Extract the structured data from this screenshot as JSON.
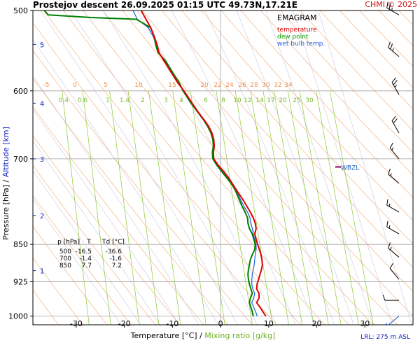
{
  "header": {
    "title": "Prostejov   descent   26.09.2025 01:15 UTC  49.73N,17.21E",
    "copyright": "CHMI © 2025"
  },
  "legend": {
    "name": "EMAGRAM",
    "items": [
      {
        "label": "temperature",
        "color": "#e00000"
      },
      {
        "label": "dew point",
        "color": "#00a000"
      },
      {
        "label": "wet bulb temp.",
        "color": "#2060e0"
      }
    ]
  },
  "table": {
    "headers": [
      "p [hPa]",
      "T",
      "Td [°C]"
    ],
    "rows": [
      [
        "500",
        "-16.5",
        "-36.6"
      ],
      [
        "700",
        "-1.4",
        "-1.6"
      ],
      [
        "850",
        "7.7",
        "7.2"
      ]
    ]
  },
  "annotations": {
    "wbzl": "WBZL",
    "wbzl_p": 713,
    "lrl": "LRL: 275 m ASL"
  },
  "colors": {
    "temperature": "#e00000",
    "dewpoint": "#008000",
    "wetbulb": "#2060e0",
    "dry_adiabat": "#f5b585",
    "moist_adiabat": "#c8c8dc",
    "mixing": "#8ec832",
    "isobar": "#a0a0a0",
    "frame": "#000000",
    "wind": "#000000",
    "wind_low": "#1050d0"
  },
  "chart_data": {
    "type": "line",
    "diagram": "emagram",
    "xlabel": "Temperature [°C]",
    "xlabel_sep": "/",
    "xlabel2": "Mixing ratio [g/kg]",
    "ylabel": "Pressure [hPa]",
    "ylabel_sep": "/",
    "ylabel2": "Altitude [km]",
    "x_range": [
      -39,
      40
    ],
    "p_range": [
      500,
      1020
    ],
    "y_scale": "log",
    "x_ticks": [
      -30,
      -20,
      -10,
      0,
      10,
      20,
      30
    ],
    "p_ticks": [
      500,
      600,
      700,
      850,
      925,
      1000
    ],
    "altitude_ticks": [
      {
        "km": 1,
        "p": 902
      },
      {
        "km": 2,
        "p": 796
      },
      {
        "km": 3,
        "p": 700
      },
      {
        "km": 4,
        "p": 617
      },
      {
        "km": 5,
        "p": 540
      }
    ],
    "dry_adiabat_labels": [
      -5,
      0,
      5,
      10,
      15,
      20,
      22,
      24,
      26,
      28,
      30,
      32,
      34
    ],
    "mixing_ratio_labels": [
      "0.4",
      "0.6",
      "1",
      "1.4",
      "2",
      "3",
      "4",
      "6",
      "8",
      "10",
      "12",
      "14",
      "17",
      "20",
      "25",
      "30"
    ],
    "mixing_ratio_values": [
      0.4,
      0.6,
      1,
      1.4,
      2,
      3,
      4,
      6,
      8,
      10,
      12,
      14,
      17,
      20,
      25,
      30
    ],
    "series": [
      {
        "name": "temperature",
        "points": [
          [
            -16.5,
            500
          ],
          [
            -15.5,
            510
          ],
          [
            -14.5,
            520
          ],
          [
            -13.8,
            530
          ],
          [
            -13.2,
            540
          ],
          [
            -12.8,
            550
          ],
          [
            -11.8,
            560
          ],
          [
            -10.8,
            570
          ],
          [
            -9.8,
            580
          ],
          [
            -8.8,
            590
          ],
          [
            -7.6,
            600
          ],
          [
            -6.6,
            610
          ],
          [
            -5.6,
            620
          ],
          [
            -4.6,
            630
          ],
          [
            -3.5,
            640
          ],
          [
            -2.5,
            650
          ],
          [
            -1.8,
            660
          ],
          [
            -1.4,
            670
          ],
          [
            -1.3,
            680
          ],
          [
            -1.5,
            690
          ],
          [
            -1.4,
            700
          ],
          [
            -0.5,
            710
          ],
          [
            0.6,
            720
          ],
          [
            1.6,
            730
          ],
          [
            2.4,
            740
          ],
          [
            3.2,
            750
          ],
          [
            4.0,
            760
          ],
          [
            4.8,
            770
          ],
          [
            5.5,
            780
          ],
          [
            6.2,
            790
          ],
          [
            6.8,
            800
          ],
          [
            7.2,
            810
          ],
          [
            7.4,
            820
          ],
          [
            7.1,
            830
          ],
          [
            7.4,
            840
          ],
          [
            7.7,
            850
          ],
          [
            8.1,
            860
          ],
          [
            8.4,
            870
          ],
          [
            8.6,
            880
          ],
          [
            8.7,
            890
          ],
          [
            8.5,
            900
          ],
          [
            8.2,
            910
          ],
          [
            7.9,
            920
          ],
          [
            7.6,
            930
          ],
          [
            7.5,
            940
          ],
          [
            8.0,
            950
          ],
          [
            8.0,
            960
          ],
          [
            7.5,
            970
          ],
          [
            8.2,
            980
          ],
          [
            8.8,
            990
          ],
          [
            9.4,
            1000
          ]
        ]
      },
      {
        "name": "dew point",
        "points": [
          [
            -36.6,
            500
          ],
          [
            -35.8,
            505
          ],
          [
            -27.0,
            508
          ],
          [
            -17.5,
            510
          ],
          [
            -14.5,
            520
          ],
          [
            -13.8,
            530
          ],
          [
            -13.5,
            540
          ],
          [
            -13.0,
            550
          ],
          [
            -11.5,
            560
          ],
          [
            -10.5,
            570
          ],
          [
            -9.5,
            580
          ],
          [
            -8.5,
            590
          ],
          [
            -7.8,
            600
          ],
          [
            -6.8,
            610
          ],
          [
            -5.8,
            620
          ],
          [
            -4.7,
            630
          ],
          [
            -3.6,
            640
          ],
          [
            -2.7,
            650
          ],
          [
            -2.0,
            660
          ],
          [
            -1.6,
            670
          ],
          [
            -1.5,
            680
          ],
          [
            -1.7,
            690
          ],
          [
            -1.6,
            700
          ],
          [
            -0.8,
            710
          ],
          [
            0.2,
            720
          ],
          [
            1.2,
            730
          ],
          [
            2.2,
            740
          ],
          [
            3.0,
            750
          ],
          [
            3.5,
            760
          ],
          [
            4.0,
            770
          ],
          [
            4.5,
            780
          ],
          [
            5.1,
            790
          ],
          [
            5.6,
            800
          ],
          [
            5.7,
            810
          ],
          [
            6.0,
            820
          ],
          [
            6.6,
            830
          ],
          [
            6.9,
            840
          ],
          [
            7.2,
            850
          ],
          [
            7.1,
            860
          ],
          [
            6.6,
            870
          ],
          [
            6.2,
            880
          ],
          [
            6.0,
            890
          ],
          [
            5.8,
            900
          ],
          [
            5.7,
            910
          ],
          [
            5.8,
            920
          ],
          [
            6.0,
            930
          ],
          [
            6.3,
            940
          ],
          [
            6.6,
            950
          ],
          [
            6.2,
            960
          ],
          [
            6.0,
            970
          ],
          [
            6.3,
            980
          ],
          [
            6.6,
            990
          ],
          [
            6.8,
            1000
          ]
        ]
      },
      {
        "name": "wet bulb temp.",
        "points": [
          [
            -18.2,
            500
          ],
          [
            -17.3,
            510
          ],
          [
            -15.0,
            520
          ],
          [
            -14.0,
            530
          ],
          [
            -13.4,
            540
          ],
          [
            -12.9,
            550
          ],
          [
            -11.6,
            560
          ],
          [
            -10.6,
            570
          ],
          [
            -9.6,
            580
          ],
          [
            -8.6,
            590
          ],
          [
            -7.7,
            600
          ],
          [
            -6.7,
            610
          ],
          [
            -5.7,
            620
          ],
          [
            -4.7,
            630
          ],
          [
            -3.5,
            640
          ],
          [
            -2.6,
            650
          ],
          [
            -1.9,
            660
          ],
          [
            -1.5,
            670
          ],
          [
            -1.4,
            680
          ],
          [
            -1.6,
            690
          ],
          [
            -1.5,
            700
          ],
          [
            -0.6,
            710
          ],
          [
            0.4,
            720
          ],
          [
            1.4,
            730
          ],
          [
            2.3,
            740
          ],
          [
            3.1,
            750
          ],
          [
            3.7,
            760
          ],
          [
            4.3,
            770
          ],
          [
            4.9,
            780
          ],
          [
            5.6,
            790
          ],
          [
            6.1,
            800
          ],
          [
            6.3,
            810
          ],
          [
            6.6,
            820
          ],
          [
            6.8,
            830
          ],
          [
            7.1,
            840
          ],
          [
            7.4,
            850
          ],
          [
            7.4,
            860
          ],
          [
            7.2,
            870
          ],
          [
            7.1,
            880
          ],
          [
            7.0,
            890
          ],
          [
            6.8,
            900
          ],
          [
            6.6,
            910
          ],
          [
            6.5,
            920
          ],
          [
            6.5,
            930
          ],
          [
            6.7,
            940
          ],
          [
            7.1,
            950
          ],
          [
            6.9,
            960
          ],
          [
            6.5,
            970
          ],
          [
            6.9,
            980
          ],
          [
            7.3,
            990
          ],
          [
            7.6,
            1000
          ]
        ]
      }
    ],
    "wind": [
      {
        "p": 505,
        "dir": 300,
        "speed": 25
      },
      {
        "p": 555,
        "dir": 310,
        "speed": 25
      },
      {
        "p": 605,
        "dir": 330,
        "speed": 25
      },
      {
        "p": 660,
        "dir": 330,
        "speed": 20
      },
      {
        "p": 700,
        "dir": 320,
        "speed": 15
      },
      {
        "p": 740,
        "dir": 310,
        "speed": 15
      },
      {
        "p": 790,
        "dir": 300,
        "speed": 15
      },
      {
        "p": 830,
        "dir": 300,
        "speed": 15
      },
      {
        "p": 875,
        "dir": 310,
        "speed": 15
      },
      {
        "p": 920,
        "dir": 320,
        "speed": 10
      },
      {
        "p": 965,
        "dir": 270,
        "speed": 10
      },
      {
        "p": 1000,
        "dir": 230,
        "speed": 5
      }
    ]
  }
}
